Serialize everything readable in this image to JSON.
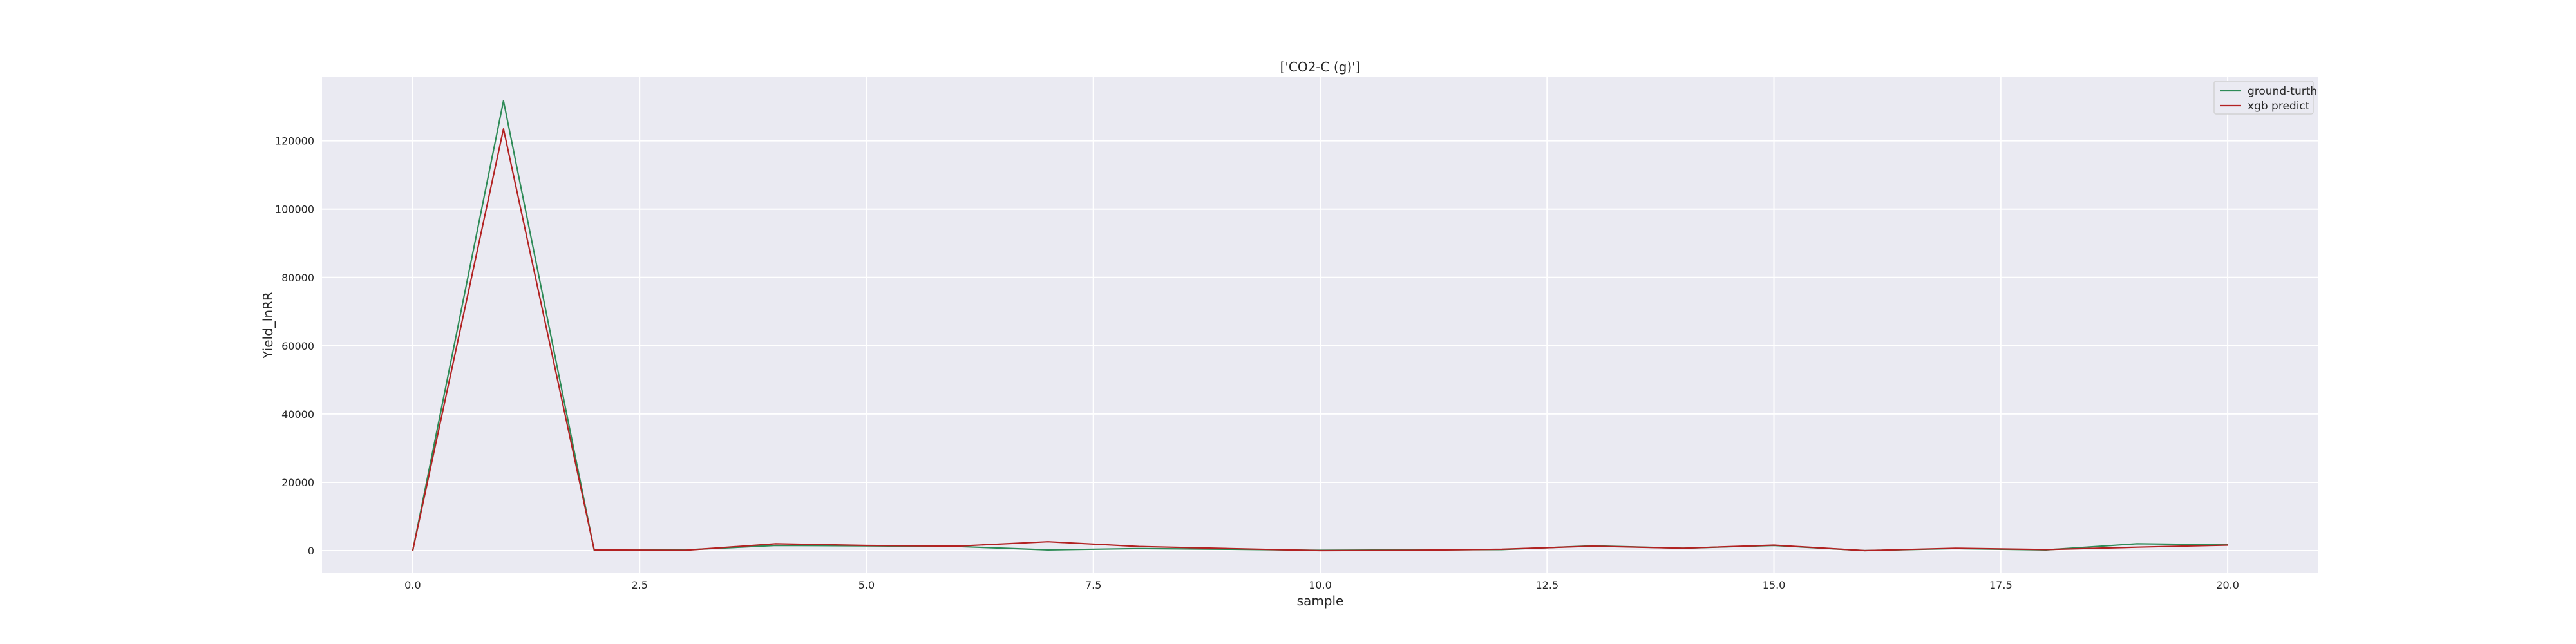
{
  "chart_data": {
    "type": "line",
    "title": "['CO2-C (g)']",
    "xlabel": "sample",
    "ylabel": "Yield_lnRR",
    "xlim": [
      -1.0,
      21.0
    ],
    "ylim": [
      -6600,
      138600
    ],
    "x_ticks": [
      0.0,
      2.5,
      5.0,
      7.5,
      10.0,
      12.5,
      15.0,
      17.5,
      20.0
    ],
    "x_tick_labels": [
      "0.0",
      "2.5",
      "5.0",
      "7.5",
      "10.0",
      "12.5",
      "15.0",
      "17.5",
      "20.0"
    ],
    "y_ticks": [
      0,
      20000,
      40000,
      60000,
      80000,
      100000,
      120000
    ],
    "y_tick_labels": [
      "0",
      "20000",
      "40000",
      "60000",
      "80000",
      "100000",
      "120000"
    ],
    "grid": true,
    "legend_position": "top-right",
    "x": [
      0,
      1,
      2,
      3,
      4,
      5,
      6,
      7,
      8,
      9,
      10,
      11,
      12,
      13,
      14,
      15,
      16,
      17,
      18,
      19,
      20
    ],
    "series": [
      {
        "name": "ground-turth",
        "color": "#2e8b57",
        "values": [
          0,
          131700,
          100,
          200,
          1500,
          1400,
          1200,
          200,
          600,
          400,
          100,
          200,
          300,
          1400,
          700,
          1500,
          0,
          600,
          200,
          2000,
          1700
        ]
      },
      {
        "name": "xgb predict",
        "color": "#b22222",
        "values": [
          0,
          123500,
          200,
          100,
          2000,
          1500,
          1300,
          2600,
          1200,
          600,
          0,
          100,
          400,
          1300,
          700,
          1600,
          0,
          700,
          300,
          1000,
          1600
        ]
      }
    ]
  }
}
